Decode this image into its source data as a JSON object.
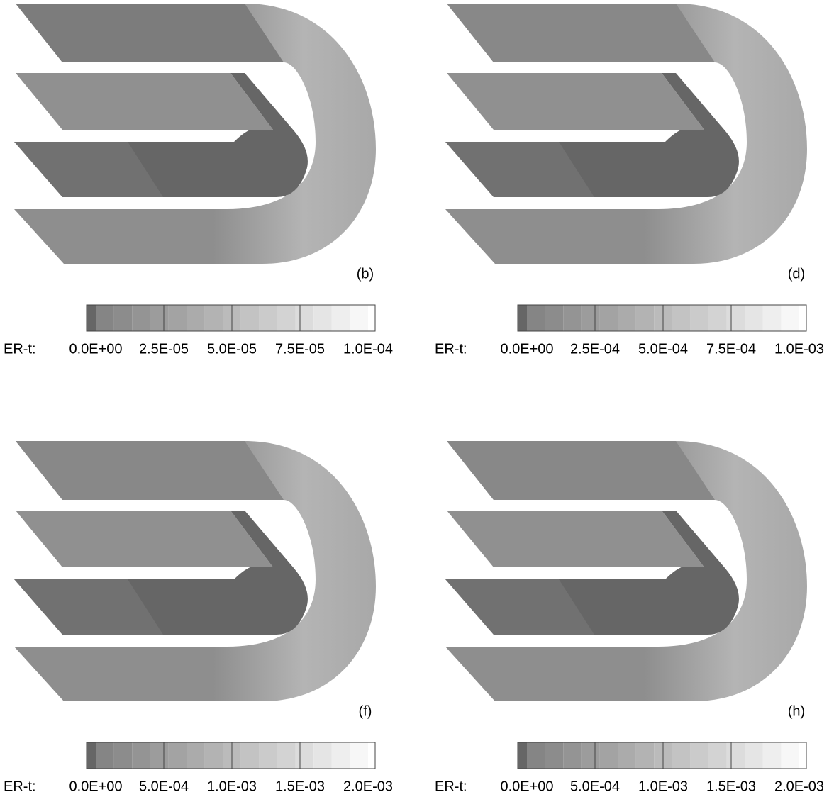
{
  "panels": [
    {
      "label": "(b)",
      "colorbar": {
        "title": "ER-t:",
        "ticks": [
          "0.0E+00",
          "2.5E-05",
          "5.0E-05",
          "7.5E-05",
          "1.0E-04"
        ]
      }
    },
    {
      "label": "(d)",
      "colorbar": {
        "title": "ER-t:",
        "ticks": [
          "0.0E+00",
          "2.5E-04",
          "5.0E-04",
          "7.5E-04",
          "1.0E-03"
        ]
      }
    },
    {
      "label": "(f)",
      "colorbar": {
        "title": "ER-t:",
        "ticks": [
          "0.0E+00",
          "5.0E-04",
          "1.0E-03",
          "1.5E-03",
          "2.0E-03"
        ]
      }
    },
    {
      "label": "(h)",
      "colorbar": {
        "title": "ER-t:",
        "ticks": [
          "0.0E+00",
          "5.0E-04",
          "1.0E-03",
          "1.5E-03",
          "2.0E-03"
        ]
      }
    }
  ]
}
